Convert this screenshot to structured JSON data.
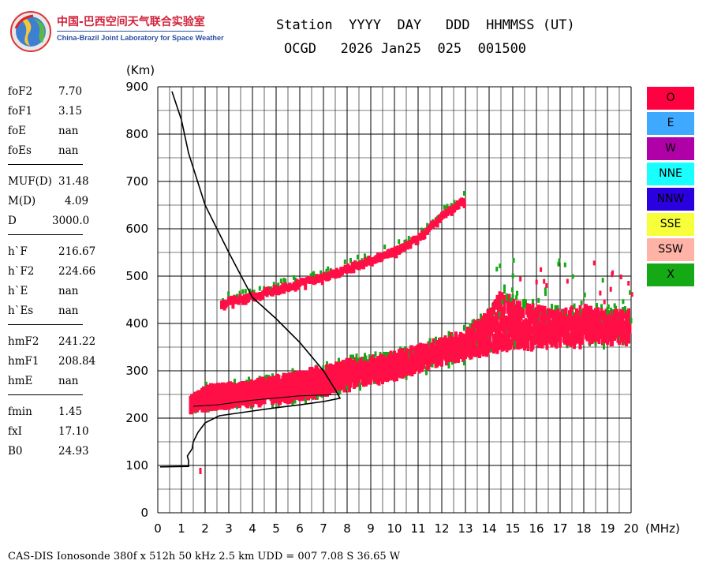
{
  "header": {
    "line1": "Station  YYYY  DAY   DDD  HHMMSS (UT)",
    "line2": "OCGD   2026 Jan25  025  001500"
  },
  "logo": {
    "name_cn": "中国-巴西空间天气联合实验室",
    "name_en": "China-Brazil Joint Laboratory for Space Weather"
  },
  "params": {
    "group1": [
      {
        "key": "foF2",
        "value": "7.70"
      },
      {
        "key": "foF1",
        "value": "3.15"
      },
      {
        "key": "foE",
        "value": "nan"
      },
      {
        "key": "foEs",
        "value": "nan"
      }
    ],
    "group2": [
      {
        "key": "MUF(D)",
        "value": "31.48"
      },
      {
        "key": "M(D)",
        "value": "4.09"
      },
      {
        "key": "D",
        "value": "3000.0"
      }
    ],
    "group3": [
      {
        "key": "h`F",
        "value": "216.67"
      },
      {
        "key": "h`F2",
        "value": "224.66"
      },
      {
        "key": "h`E",
        "value": "nan"
      },
      {
        "key": "h`Es",
        "value": "nan"
      }
    ],
    "group4": [
      {
        "key": "hmF2",
        "value": "241.22"
      },
      {
        "key": "hmF1",
        "value": "208.84"
      },
      {
        "key": "hmE",
        "value": "nan"
      }
    ],
    "group5": [
      {
        "key": "fmin",
        "value": "1.45"
      },
      {
        "key": "fxI",
        "value": "17.10"
      },
      {
        "key": "B0",
        "value": "24.93"
      }
    ]
  },
  "legend": [
    {
      "label": "O",
      "color": "#ff0040",
      "text_color": "#000000"
    },
    {
      "label": "E",
      "color": "#3fa9ff",
      "text_color": "#000000"
    },
    {
      "label": "W",
      "color": "#b000a8",
      "text_color": "#000000"
    },
    {
      "label": "NNE",
      "color": "#19ffff",
      "text_color": "#000000"
    },
    {
      "label": "NNW",
      "color": "#2b00e0",
      "text_color": "#000000"
    },
    {
      "label": "SSE",
      "color": "#f7ff3a",
      "text_color": "#000000"
    },
    {
      "label": "SSW",
      "color": "#ffb3a7",
      "text_color": "#000000"
    },
    {
      "label": "X",
      "color": "#15aa15",
      "text_color": "#000000"
    }
  ],
  "footer": "CAS-DIS Ionosonde 380f x 512h 50 kHz 2.5 km UDD = 007 7.08 S 36.65 W",
  "chart_data": {
    "type": "scatter",
    "title": "",
    "xlabel": "(MHz)",
    "ylabel": "(Km)",
    "xlim": [
      0,
      20
    ],
    "ylim": [
      0,
      900
    ],
    "xticks": [
      0,
      1,
      2,
      3,
      4,
      5,
      6,
      7,
      8,
      9,
      10,
      11,
      12,
      13,
      14,
      15,
      16,
      17,
      18,
      19,
      20
    ],
    "yticks": [
      0,
      100,
      200,
      300,
      400,
      500,
      600,
      700,
      800,
      900
    ],
    "grid": true,
    "colors": {
      "o_trace": "#ff0f45",
      "x_trace": "#17a817",
      "profile": "#000000"
    },
    "series": [
      {
        "name": "O-mode F trace (lower edge)",
        "points": [
          [
            1.4,
            220
          ],
          [
            2,
            225
          ],
          [
            3,
            230
          ],
          [
            4,
            235
          ],
          [
            5,
            240
          ],
          [
            6,
            245
          ],
          [
            7,
            255
          ],
          [
            8,
            268
          ],
          [
            9,
            278
          ],
          [
            10,
            290
          ],
          [
            11,
            305
          ],
          [
            12,
            320
          ],
          [
            13,
            330
          ],
          [
            14,
            345
          ],
          [
            15,
            350
          ],
          [
            16,
            355
          ],
          [
            17,
            360
          ],
          [
            18,
            360
          ],
          [
            19,
            365
          ],
          [
            20,
            365
          ]
        ]
      },
      {
        "name": "O-mode F trace (upper edge)",
        "points": [
          [
            1.4,
            235
          ],
          [
            2,
            260
          ],
          [
            3,
            265
          ],
          [
            4,
            270
          ],
          [
            5,
            280
          ],
          [
            6,
            290
          ],
          [
            7,
            300
          ],
          [
            8,
            315
          ],
          [
            9,
            320
          ],
          [
            10,
            330
          ],
          [
            11,
            345
          ],
          [
            12,
            360
          ],
          [
            13,
            380
          ],
          [
            14,
            420
          ],
          [
            14.5,
            470
          ],
          [
            15,
            440
          ],
          [
            16,
            430
          ],
          [
            17,
            420
          ],
          [
            18,
            430
          ],
          [
            19,
            420
          ],
          [
            20,
            420
          ]
        ]
      },
      {
        "name": "Multiple-hop echo trace",
        "points": [
          [
            2.7,
            440
          ],
          [
            3,
            445
          ],
          [
            4,
            455
          ],
          [
            5,
            470
          ],
          [
            6,
            483
          ],
          [
            7,
            495
          ],
          [
            8,
            515
          ],
          [
            9,
            532
          ],
          [
            10,
            550
          ],
          [
            11,
            580
          ],
          [
            12,
            625
          ],
          [
            13,
            660
          ]
        ]
      },
      {
        "name": "Electron density profile (true height)",
        "points": [
          [
            0.1,
            97
          ],
          [
            1.3,
            98
          ],
          [
            1.3,
            110
          ],
          [
            1.25,
            120
          ],
          [
            1.45,
            135
          ],
          [
            1.5,
            150
          ],
          [
            1.7,
            170
          ],
          [
            2.0,
            190
          ],
          [
            2.6,
            205
          ],
          [
            4,
            215
          ],
          [
            5,
            222
          ],
          [
            6,
            228
          ],
          [
            7,
            235
          ],
          [
            7.7,
            242
          ],
          [
            7.5,
            260
          ],
          [
            7,
            300
          ],
          [
            6,
            360
          ],
          [
            5,
            410
          ],
          [
            4,
            455
          ],
          [
            3,
            550
          ],
          [
            2,
            650
          ],
          [
            1.3,
            760
          ],
          [
            1.0,
            830
          ],
          [
            0.6,
            890
          ]
        ]
      }
    ]
  }
}
